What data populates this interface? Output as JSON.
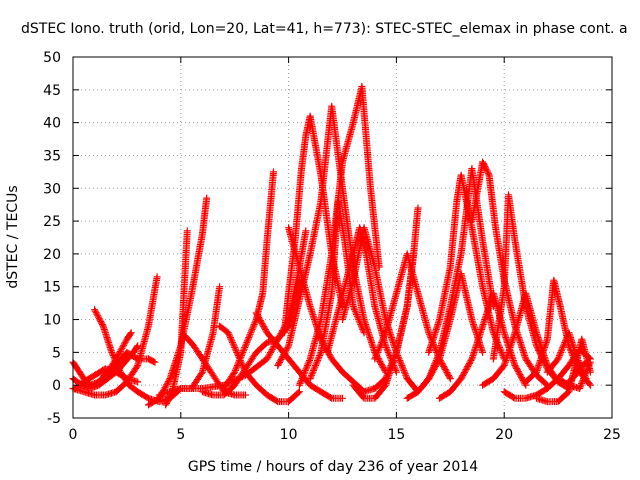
{
  "chart_data": {
    "type": "scatter",
    "title": "dSTEC Iono. truth (orid, Lon=20, Lat=41, h=773): STEC-STEC_elemax in phase cont. a",
    "xlabel": "GPS time / hours of day 236 of year 2014",
    "ylabel": "dSTEC  / TECUs",
    "xlim": [
      0,
      25
    ],
    "ylim": [
      -5,
      50
    ],
    "xticks": [
      0,
      5,
      10,
      15,
      20,
      25
    ],
    "yticks": [
      -5,
      0,
      5,
      10,
      15,
      20,
      25,
      30,
      35,
      40,
      45,
      50
    ],
    "grid": true,
    "marker": "+",
    "color": "#ff0000",
    "series": [
      {
        "x": [
          0.0,
          0.5,
          1.0,
          1.5,
          2.0,
          2.5,
          3.0,
          3.5,
          3.9
        ],
        "y": [
          -0.5,
          -1.0,
          -1.5,
          -1.5,
          -1.0,
          0.5,
          3.0,
          9.0,
          16.5
        ]
      },
      {
        "x": [
          0.0,
          0.2,
          0.5,
          0.8,
          1.2,
          1.6,
          2.0,
          2.5,
          2.7
        ],
        "y": [
          3.5,
          2.5,
          1.0,
          0.0,
          0.5,
          2.0,
          4.0,
          7.0,
          8.0
        ]
      },
      {
        "x": [
          0.0,
          0.4,
          0.8,
          1.2,
          1.6,
          2.0,
          2.4,
          2.8,
          3.0
        ],
        "y": [
          1.0,
          0.0,
          -0.5,
          0.0,
          1.0,
          2.0,
          3.5,
          5.0,
          6.0
        ]
      },
      {
        "x": [
          0.1,
          0.5,
          1.0,
          1.5,
          2.0,
          2.5,
          3.0
        ],
        "y": [
          -0.5,
          0.5,
          1.5,
          2.5,
          2.0,
          1.0,
          0.5
        ]
      },
      {
        "x": [
          1.0,
          1.4,
          1.8,
          2.2,
          2.6,
          3.0,
          3.5,
          4.0,
          4.5
        ],
        "y": [
          11.5,
          9.0,
          5.0,
          2.0,
          0.0,
          -1.0,
          -2.0,
          -2.5,
          -2.0
        ]
      },
      {
        "x": [
          1.5,
          2.0,
          2.5,
          3.0,
          3.5,
          3.8
        ],
        "y": [
          1.5,
          3.0,
          5.0,
          4.0,
          4.0,
          3.5
        ]
      },
      {
        "x": [
          3.5,
          4.0,
          4.5,
          5.0,
          5.5,
          6.0,
          6.2
        ],
        "y": [
          -3.0,
          -2.0,
          1.0,
          6.0,
          14.0,
          23.0,
          28.5
        ]
      },
      {
        "x": [
          4.3,
          4.6,
          5.0,
          5.3
        ],
        "y": [
          -3.0,
          -1.0,
          5.0,
          23.5
        ]
      },
      {
        "x": [
          4.0,
          5.0,
          6.0,
          7.0,
          8.0,
          9.0,
          10.0,
          10.5,
          10.8
        ],
        "y": [
          -1.5,
          -0.5,
          -0.5,
          0.0,
          1.5,
          4.0,
          10.0,
          18.0,
          23.5
        ]
      },
      {
        "x": [
          4.5,
          5.0,
          5.5,
          6.0,
          6.5,
          6.8
        ],
        "y": [
          -2.0,
          -0.5,
          -0.5,
          2.0,
          8.0,
          15.0
        ]
      },
      {
        "x": [
          5.2,
          5.6,
          6.0,
          6.5,
          7.0,
          7.5,
          8.0
        ],
        "y": [
          7.5,
          6.0,
          4.0,
          1.5,
          -1.0,
          -1.5,
          -1.5
        ]
      },
      {
        "x": [
          6.0,
          6.5,
          7.0,
          7.5,
          8.0,
          8.5,
          9.0,
          9.5,
          10.0,
          10.5
        ],
        "y": [
          -1.0,
          -1.5,
          -1.5,
          0.0,
          2.5,
          5.0,
          6.5,
          7.0,
          9.0,
          16.0
        ]
      },
      {
        "x": [
          6.8,
          7.2,
          7.6,
          8.0,
          8.5,
          9.0,
          9.5,
          10.0,
          10.5
        ],
        "y": [
          9.0,
          8.0,
          5.0,
          2.0,
          0.0,
          -1.5,
          -2.5,
          -2.5,
          -1.0
        ]
      },
      {
        "x": [
          7.0,
          7.5,
          8.0,
          8.5,
          8.8,
          9.0,
          9.3
        ],
        "y": [
          -0.5,
          2.0,
          6.0,
          10.0,
          14.0,
          22.0,
          32.5
        ]
      },
      {
        "x": [
          8.5,
          9.0,
          9.5,
          10.0,
          10.5,
          11.0,
          11.5,
          12.0,
          12.5
        ],
        "y": [
          11.0,
          8.0,
          6.0,
          4.0,
          2.0,
          0.0,
          -1.0,
          -2.0,
          -2.0
        ]
      },
      {
        "x": [
          9.5,
          10.0,
          10.5,
          11.0,
          11.5,
          12.0,
          12.5,
          13.0,
          13.5,
          14.0,
          14.5
        ],
        "y": [
          3.0,
          6.0,
          13.0,
          20.0,
          28.0,
          42.5,
          30.0,
          18.0,
          10.0,
          5.0,
          2.0
        ]
      },
      {
        "x": [
          9.8,
          10.0,
          10.3,
          10.6,
          10.8,
          11.0,
          11.5,
          12.0,
          12.5
        ],
        "y": [
          8.0,
          14.0,
          22.0,
          33.0,
          38.0,
          41.0,
          32.0,
          20.0,
          12.0
        ]
      },
      {
        "x": [
          10.0,
          10.5,
          11.0,
          11.5,
          12.0,
          12.5,
          13.0,
          13.5
        ],
        "y": [
          24.0,
          18.0,
          12.0,
          7.0,
          4.0,
          2.0,
          0.5,
          -1.0
        ]
      },
      {
        "x": [
          10.5,
          11.0,
          11.5,
          12.0,
          12.5,
          13.0,
          13.4,
          13.8,
          14.2
        ],
        "y": [
          0.0,
          4.0,
          10.0,
          20.0,
          34.0,
          40.0,
          45.5,
          30.0,
          18.0
        ]
      },
      {
        "x": [
          11.0,
          11.5,
          12.0,
          12.3,
          12.6,
          13.0,
          13.5
        ],
        "y": [
          1.0,
          5.0,
          14.0,
          28.0,
          22.0,
          12.0,
          8.0
        ]
      },
      {
        "x": [
          11.8,
          12.2,
          12.6,
          13.0,
          13.3,
          13.6,
          14.0,
          14.5,
          15.0
        ],
        "y": [
          5.0,
          10.0,
          15.0,
          20.0,
          24.0,
          20.0,
          12.0,
          6.0,
          2.0
        ]
      },
      {
        "x": [
          12.5,
          13.0,
          13.5,
          14.0,
          14.5,
          15.0,
          15.5,
          16.0
        ],
        "y": [
          10.0,
          16.0,
          24.0,
          18.0,
          10.0,
          5.0,
          1.0,
          -1.0
        ]
      },
      {
        "x": [
          13.0,
          13.5,
          14.0,
          14.5,
          15.0,
          15.5,
          15.8
        ],
        "y": [
          0.0,
          -2.0,
          -2.0,
          0.0,
          5.0,
          12.0,
          20.0
        ]
      },
      {
        "x": [
          13.5,
          14.0,
          14.5,
          15.0,
          15.5,
          15.8,
          16.0
        ],
        "y": [
          -1.0,
          -0.5,
          1.0,
          5.0,
          12.0,
          20.0,
          27.0
        ]
      },
      {
        "x": [
          14.0,
          14.5,
          15.0,
          15.5,
          16.0,
          16.5,
          17.0,
          17.5
        ],
        "y": [
          4.0,
          8.0,
          14.0,
          20.0,
          14.0,
          8.0,
          4.0,
          1.0
        ]
      },
      {
        "x": [
          15.5,
          16.0,
          16.5,
          17.0,
          17.5,
          18.0,
          18.5,
          19.0
        ],
        "y": [
          -2.0,
          -1.0,
          1.0,
          4.0,
          10.0,
          17.0,
          10.0,
          5.0
        ]
      },
      {
        "x": [
          16.0,
          16.5,
          17.0,
          17.5,
          18.0,
          18.5,
          19.0,
          19.5
        ],
        "y": [
          -1.0,
          1.0,
          5.0,
          12.0,
          20.0,
          33.0,
          22.0,
          12.0
        ]
      },
      {
        "x": [
          16.5,
          17.0,
          17.5,
          17.8,
          18.0,
          18.5,
          19.0,
          19.5,
          20.0
        ],
        "y": [
          5.0,
          10.0,
          18.0,
          28.0,
          32.0,
          24.0,
          15.0,
          8.0,
          4.0
        ]
      },
      {
        "x": [
          17.0,
          17.5,
          18.0,
          18.5,
          19.0,
          19.5,
          20.0,
          20.5,
          21.0
        ],
        "y": [
          -2.0,
          -1.0,
          1.0,
          4.0,
          9.0,
          14.0,
          8.0,
          3.0,
          0.0
        ]
      },
      {
        "x": [
          18.5,
          19.0,
          19.3,
          19.6,
          20.0,
          20.5,
          21.0,
          21.5,
          22.0
        ],
        "y": [
          25.0,
          34.0,
          32.0,
          24.0,
          16.0,
          9.0,
          4.0,
          1.5,
          0.0
        ]
      },
      {
        "x": [
          19.0,
          19.5,
          20.0,
          20.5,
          21.0,
          21.5,
          22.0,
          22.5
        ],
        "y": [
          0.0,
          1.0,
          3.0,
          8.0,
          14.0,
          8.0,
          3.0,
          0.5
        ]
      },
      {
        "x": [
          19.5,
          20.0,
          20.2,
          20.5,
          21.0,
          21.5,
          22.0,
          22.5,
          23.0
        ],
        "y": [
          4.0,
          15.0,
          29.0,
          22.0,
          12.0,
          6.0,
          2.5,
          0.5,
          -0.5
        ]
      },
      {
        "x": [
          20.0,
          20.5,
          21.0,
          21.5,
          22.0,
          22.5,
          23.0,
          23.5,
          24.0
        ],
        "y": [
          -1.0,
          -2.0,
          -2.0,
          -1.5,
          -0.5,
          1.0,
          3.0,
          5.5,
          4.0
        ]
      },
      {
        "x": [
          21.0,
          21.5,
          22.0,
          22.3,
          22.6,
          23.0,
          23.5,
          24.0
        ],
        "y": [
          0.5,
          2.0,
          7.0,
          16.0,
          12.0,
          6.0,
          2.0,
          0.0
        ]
      },
      {
        "x": [
          21.5,
          22.0,
          22.5,
          23.0,
          23.3,
          23.6,
          24.0
        ],
        "y": [
          -2.0,
          -2.5,
          -2.5,
          -1.0,
          3.0,
          7.0,
          2.0
        ]
      },
      {
        "x": [
          22.0,
          22.5,
          23.0,
          23.4,
          23.8
        ],
        "y": [
          2.0,
          4.0,
          8.0,
          4.0,
          1.0
        ]
      },
      {
        "x": [
          22.5,
          23.0,
          23.5,
          23.8,
          24.0
        ],
        "y": [
          1.0,
          0.0,
          -0.5,
          2.0,
          3.5
        ]
      },
      {
        "x": [
          23.0,
          23.3,
          23.6,
          23.9
        ],
        "y": [
          0.5,
          1.5,
          3.0,
          3.5
        ]
      }
    ]
  }
}
